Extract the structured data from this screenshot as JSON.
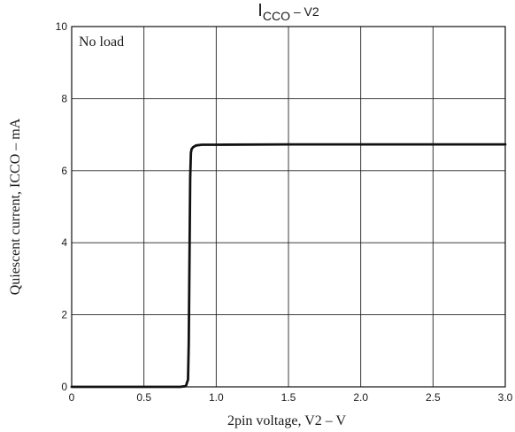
{
  "chart_data": {
    "type": "line",
    "title": {
      "main": "I",
      "sub": "CCO",
      "suffix": " – V2"
    },
    "xlabel": "2pin voltage, V2 – V",
    "ylabel": "Quiescent current, ICCO – mA",
    "xlim": [
      0,
      3.0
    ],
    "ylim": [
      0,
      10
    ],
    "x_ticks": [
      0,
      0.5,
      1.0,
      1.5,
      2.0,
      2.5,
      3.0
    ],
    "x_tick_labels": [
      "0",
      "0.5",
      "1.0",
      "1.5",
      "2.0",
      "2.5",
      "3.0"
    ],
    "y_ticks": [
      0,
      2,
      4,
      6,
      8,
      10
    ],
    "y_tick_labels": [
      "0",
      "2",
      "4",
      "6",
      "8",
      "10"
    ],
    "grid": true,
    "annotation": "No load",
    "series": [
      {
        "x": [
          0,
          0.5,
          0.75,
          0.79,
          0.805,
          0.81,
          0.815,
          0.82,
          0.825,
          0.83,
          0.84,
          0.86,
          0.9,
          1.0,
          1.5,
          2.0,
          2.5,
          3.0
        ],
        "y": [
          0,
          0,
          0,
          0.02,
          0.2,
          1.2,
          3.5,
          5.8,
          6.5,
          6.6,
          6.65,
          6.7,
          6.72,
          6.72,
          6.73,
          6.73,
          6.73,
          6.73
        ]
      }
    ],
    "colors": {
      "line": "#111111",
      "grid": "#222222",
      "frame": "#111111"
    }
  }
}
